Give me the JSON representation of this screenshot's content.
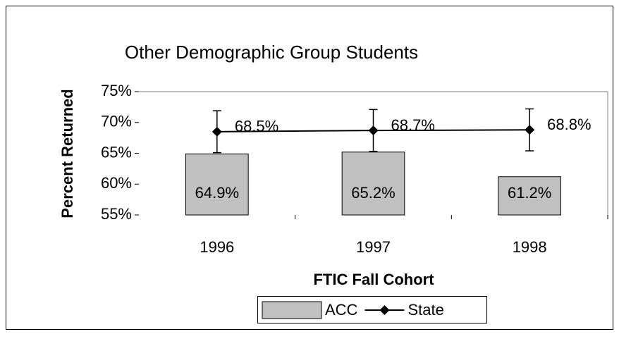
{
  "chart_data": {
    "type": "combo",
    "title": "Other Demographic Group Students",
    "xlabel": "FTIC Fall Cohort",
    "ylabel": "Percent Returned",
    "categories": [
      "1996",
      "1997",
      "1998"
    ],
    "series": [
      {
        "name": "ACC",
        "type": "bar",
        "color": "#c0c0c0",
        "values": [
          64.9,
          65.2,
          61.2
        ],
        "value_labels": [
          "64.9%",
          "65.2%",
          "61.2%"
        ]
      },
      {
        "name": "State",
        "type": "line",
        "color": "#000000",
        "values": [
          68.5,
          68.7,
          68.8
        ],
        "value_labels": [
          "68.5%",
          "68.7%",
          "68.8%"
        ],
        "errors": [
          3.4,
          3.4,
          3.4
        ]
      }
    ],
    "ylim": [
      55,
      75
    ],
    "yticks": [
      {
        "value": 55,
        "label": "55%"
      },
      {
        "value": 60,
        "label": "60%"
      },
      {
        "value": 65,
        "label": "65%"
      },
      {
        "value": 70,
        "label": "70%"
      },
      {
        "value": 75,
        "label": "75%"
      }
    ],
    "legend": "bottom"
  }
}
